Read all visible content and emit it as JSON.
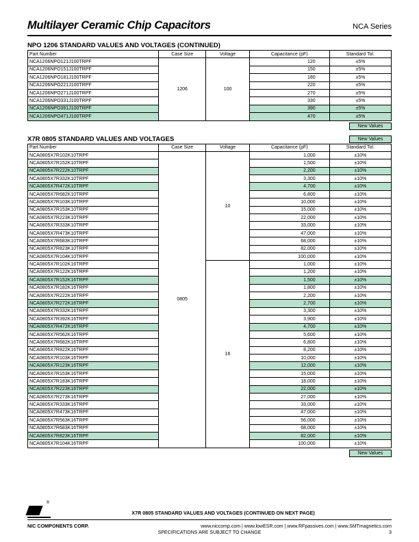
{
  "header": {
    "title": "Multilayer Ceramic Chip Capacitors",
    "series": "NCA Series"
  },
  "section1": {
    "title": "NPO 1206 STANDARD VALUES AND VOLTAGES (CONTINUED)",
    "columns": [
      "Part Number",
      "Case Size",
      "Voltage",
      "Capacitance (pF)",
      "Standard Tol."
    ],
    "case_size": "1206",
    "voltage": "100",
    "rows": [
      {
        "pn": "NCA1206NPO121J100TRPF",
        "cap": "120",
        "tol": "±5%",
        "hl": false
      },
      {
        "pn": "NCA1206NPO151J100TRPF",
        "cap": "150",
        "tol": "±5%",
        "hl": false
      },
      {
        "pn": "NCA1206NPO181J100TRPF",
        "cap": "180",
        "tol": "±5%",
        "hl": false
      },
      {
        "pn": "NCA1206NPO221J100TRPF",
        "cap": "220",
        "tol": "±5%",
        "hl": false
      },
      {
        "pn": "NCA1206NPO271J100TRPF",
        "cap": "270",
        "tol": "±5%",
        "hl": false
      },
      {
        "pn": "NCA1206NPO331J100TRPF",
        "cap": "330",
        "tol": "±5%",
        "hl": false
      },
      {
        "pn": "NCA1206NPO391J100TRPF",
        "cap": "390",
        "tol": "±5%",
        "hl": true
      },
      {
        "pn": "NCA1206NPO471J100TRPF",
        "cap": "470",
        "tol": "±5%",
        "hl": true
      }
    ],
    "new_values_label": "New Values"
  },
  "section2": {
    "title": "X7R 0805 STANDARD VALUES AND VOLTAGES",
    "new_values_label": "New Values",
    "columns": [
      "Part Number",
      "Case Size",
      "Voltage",
      "Capacitance (pF)",
      "Standard Tol."
    ],
    "case_size": "0805",
    "blocks": [
      {
        "voltage": "10",
        "rows": [
          {
            "pn": "NCA0805X7R102K10TRPF",
            "cap": "1,000",
            "tol": "±10%",
            "hl": false
          },
          {
            "pn": "NCA0805X7R152K10TRPF",
            "cap": "1,500",
            "tol": "±10%",
            "hl": false
          },
          {
            "pn": "NCA0805X7R222K10TRPF",
            "cap": "2,200",
            "tol": "±10%",
            "hl": true
          },
          {
            "pn": "NCA0805X7R332K10TRPF",
            "cap": "3,300",
            "tol": "±10%",
            "hl": false
          },
          {
            "pn": "NCA0805X7R472K10TRPF",
            "cap": "4,700",
            "tol": "±10%",
            "hl": true
          },
          {
            "pn": "NCA0805X7R682K10TRPF",
            "cap": "6,800",
            "tol": "±10%",
            "hl": false
          },
          {
            "pn": "NCA0805X7R103K10TRPF",
            "cap": "10,000",
            "tol": "±10%",
            "hl": false
          },
          {
            "pn": "NCA0805X7R153K10TRPF",
            "cap": "15,000",
            "tol": "±10%",
            "hl": false
          },
          {
            "pn": "NCA0805X7R223K10TRPF",
            "cap": "22,000",
            "tol": "±10%",
            "hl": false
          },
          {
            "pn": "NCA0805X7R333K10TRPF",
            "cap": "33,000",
            "tol": "±10%",
            "hl": false
          },
          {
            "pn": "NCA0805X7R473K10TRPF",
            "cap": "47,000",
            "tol": "±10%",
            "hl": false
          },
          {
            "pn": "NCA0805X7R683K10TRPF",
            "cap": "68,000",
            "tol": "±10%",
            "hl": false
          },
          {
            "pn": "NCA0805X7R823K10TRPF",
            "cap": "82,000",
            "tol": "±10%",
            "hl": false
          },
          {
            "pn": "NCA0805X7R104K10TRPF",
            "cap": "100,000",
            "tol": "±10%",
            "hl": false
          }
        ]
      },
      {
        "voltage": "16",
        "rows": [
          {
            "pn": "NCA0805X7R102K16TRPF",
            "cap": "1,000",
            "tol": "±10%",
            "hl": false
          },
          {
            "pn": "NCA0805X7R122K16TRPF",
            "cap": "1,200",
            "tol": "±10%",
            "hl": false
          },
          {
            "pn": "NCA0805X7R152K16TRPF",
            "cap": "1,500",
            "tol": "±10%",
            "hl": true
          },
          {
            "pn": "NCA0805X7R182K16TRPF",
            "cap": "1,800",
            "tol": "±10%",
            "hl": false
          },
          {
            "pn": "NCA0805X7R222K16TRPF",
            "cap": "2,200",
            "tol": "±10%",
            "hl": false
          },
          {
            "pn": "NCA0805X7R272K16TRPF",
            "cap": "2,700",
            "tol": "±10%",
            "hl": true
          },
          {
            "pn": "NCA0805X7R332K16TRPF",
            "cap": "3,300",
            "tol": "±10%",
            "hl": false
          },
          {
            "pn": "NCA0805X7R392K16TRPF",
            "cap": "3,900",
            "tol": "±10%",
            "hl": false
          },
          {
            "pn": "NCA0805X7R472K16TRPF",
            "cap": "4,700",
            "tol": "±10%",
            "hl": true
          },
          {
            "pn": "NCA0805X7R562K16TRPF",
            "cap": "5,600",
            "tol": "±10%",
            "hl": false
          },
          {
            "pn": "NCA0805X7R682K16TRPF",
            "cap": "6,800",
            "tol": "±10%",
            "hl": false
          },
          {
            "pn": "NCA0805X7R822K16TRPF",
            "cap": "8,200",
            "tol": "±10%",
            "hl": false
          },
          {
            "pn": "NCA0805X7R103K16TRPF",
            "cap": "10,000",
            "tol": "±10%",
            "hl": false
          },
          {
            "pn": "NCA0805X7R123K16TRPF",
            "cap": "12,000",
            "tol": "±10%",
            "hl": true
          },
          {
            "pn": "NCA0805X7R153K16TRPF",
            "cap": "15,000",
            "tol": "±10%",
            "hl": false
          },
          {
            "pn": "NCA0805X7R183K16TRPF",
            "cap": "18,000",
            "tol": "±10%",
            "hl": false
          },
          {
            "pn": "NCA0805X7R223K16TRPF",
            "cap": "22,000",
            "tol": "±10%",
            "hl": true
          },
          {
            "pn": "NCA0805X7R273K16TRPF",
            "cap": "27,000",
            "tol": "±10%",
            "hl": false
          },
          {
            "pn": "NCA0805X7R333K16TRPF",
            "cap": "33,000",
            "tol": "±10%",
            "hl": false
          },
          {
            "pn": "NCA0805X7R473K16TRPF",
            "cap": "47,000",
            "tol": "±10%",
            "hl": false
          },
          {
            "pn": "NCA0805X7R563K16TRPF",
            "cap": "56,000",
            "tol": "±10%",
            "hl": false
          },
          {
            "pn": "NCA0805X7R683K16TRPF",
            "cap": "68,000",
            "tol": "±10%",
            "hl": false
          },
          {
            "pn": "NCA0805X7R823K16TRPF",
            "cap": "82,000",
            "tol": "±10%",
            "hl": true
          },
          {
            "pn": "NCA0805X7R104K16TRPF",
            "cap": "100,000",
            "tol": "±10%",
            "hl": false
          }
        ]
      }
    ],
    "new_values_label_bottom": "New Values"
  },
  "footer": {
    "continued_note": "X7R 0805 STANDARD VALUES AND VOLTAGES (CONTINUED ON NEXT PAGE)",
    "corp": "NIC COMPONENTS CORP.",
    "links": "www.niccomp.com    |   www.lowESR.com    |   www.RFpassives.com    |   www.SMTmagnetics.com",
    "disclaimer": "SPECIFICATIONS ARE SUBJECT TO CHANGE",
    "page": "3"
  },
  "colors": {
    "highlight": "#b8e0cd",
    "border": "#000000",
    "background": "#ffffff"
  }
}
